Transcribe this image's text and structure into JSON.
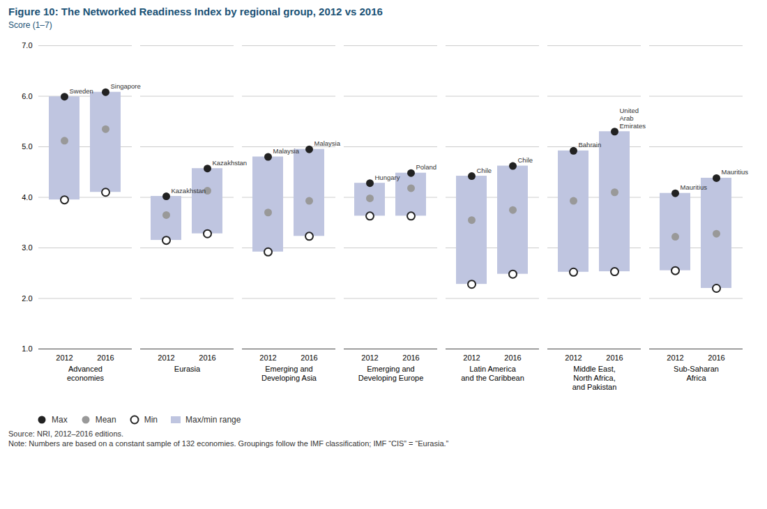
{
  "chart_data": {
    "type": "range_bar",
    "title": "Figure 10: The Networked Readiness Index by regional group, 2012 vs 2016",
    "ylabel": "Score (1–7)",
    "ylim": [
      1,
      7
    ],
    "yticks": [
      1,
      2,
      3,
      4,
      5,
      6,
      7
    ],
    "grid": true,
    "legend": "lower left",
    "groups": [
      {
        "label": "Advanced\neconomies",
        "categories": [
          "2012",
          "2016"
        ]
      },
      {
        "label": "Eurasia",
        "categories": [
          "2012",
          "2016"
        ]
      },
      {
        "label": "Emerging and\nDeveloping Asia",
        "categories": [
          "2012",
          "2016"
        ]
      },
      {
        "label": "Emerging and\nDeveloping Europe",
        "categories": [
          "2012",
          "2016"
        ]
      },
      {
        "label": "Latin America\nand the Caribbean",
        "categories": [
          "2012",
          "2016"
        ]
      },
      {
        "label": "Middle East,\nNorth Africa,\nand Pakistan",
        "categories": [
          "2012",
          "2016"
        ]
      },
      {
        "label": "Sub-Saharan\nAfrica",
        "categories": [
          "2012",
          "2016"
        ]
      }
    ],
    "series": [
      {
        "name": "Max",
        "color": "#222222",
        "marker": "circle",
        "values": [
          5.99,
          6.08,
          4.02,
          4.57,
          4.8,
          4.95,
          4.28,
          4.48,
          4.42,
          4.62,
          4.92,
          5.3,
          4.08,
          4.38
        ],
        "labels": [
          "Sweden",
          "Singapore",
          "Kazakhstan",
          "Kazakhstan",
          "Malaysia",
          "Malaysia",
          "Hungary",
          "Poland",
          "Chile",
          "Chile",
          "Bahrain",
          "United\nArab\nEmirates",
          "Mauritius",
          "Mauritius"
        ]
      },
      {
        "name": "Mean",
        "color": "#999999",
        "marker": "circle",
        "values": [
          5.12,
          5.35,
          3.65,
          4.13,
          3.7,
          3.93,
          3.98,
          4.18,
          3.55,
          3.75,
          3.93,
          4.1,
          3.22,
          3.28
        ]
      },
      {
        "name": "Min",
        "color": "#222222",
        "marker": "open_circle",
        "values": [
          3.95,
          4.1,
          3.15,
          3.28,
          2.92,
          3.23,
          3.63,
          3.63,
          2.28,
          2.48,
          2.52,
          2.53,
          2.55,
          2.2
        ]
      },
      {
        "name": "Max/min range",
        "color": "#bfc5e0",
        "type": "bar",
        "values": [
          [
            3.95,
            5.99
          ],
          [
            4.1,
            6.08
          ],
          [
            3.15,
            4.02
          ],
          [
            3.28,
            4.57
          ],
          [
            2.92,
            4.8
          ],
          [
            3.23,
            4.95
          ],
          [
            3.63,
            4.28
          ],
          [
            3.63,
            4.48
          ],
          [
            2.28,
            4.42
          ],
          [
            2.48,
            4.62
          ],
          [
            2.52,
            4.92
          ],
          [
            2.53,
            5.3
          ],
          [
            2.55,
            4.08
          ],
          [
            2.2,
            4.38
          ]
        ]
      }
    ],
    "source": "Source: NRI, 2012–2016 editions.",
    "note": "Note: Numbers are based on a constant sample of 132 economies. Groupings follow the IMF classification; IMF “CIS” = “Eurasia.”"
  }
}
